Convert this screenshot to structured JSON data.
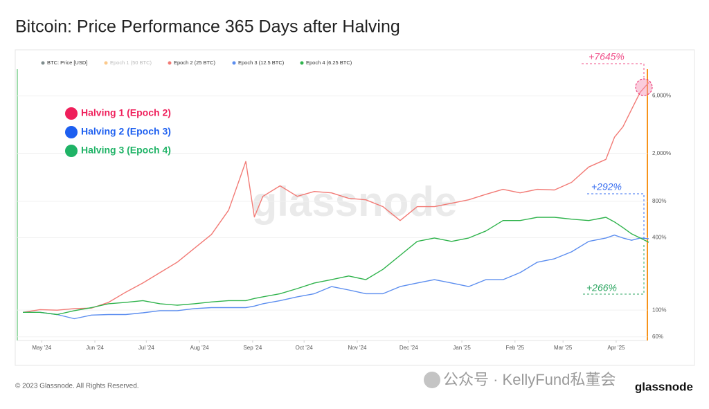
{
  "chart_data": {
    "type": "line",
    "title": "Bitcoin: Price Performance 365 Days after Halving",
    "log_scale": true,
    "y_axis_side": "right",
    "grid": true,
    "xlim": [
      0,
      365
    ],
    "xticks": [
      {
        "value": 11,
        "label": "May '24"
      },
      {
        "value": 42,
        "label": "Jun '24"
      },
      {
        "value": 72,
        "label": "Jul '24"
      },
      {
        "value": 103,
        "label": "Aug '24"
      },
      {
        "value": 134,
        "label": "Sep '24"
      },
      {
        "value": 164,
        "label": "Oct '24"
      },
      {
        "value": 195,
        "label": "Nov '24"
      },
      {
        "value": 225,
        "label": "Dec '24"
      },
      {
        "value": 256,
        "label": "Jan '25"
      },
      {
        "value": 287,
        "label": "Feb '25"
      },
      {
        "value": 315,
        "label": "Mar '25"
      },
      {
        "value": 346,
        "label": "Apr '25"
      }
    ],
    "ylim": [
      56,
      10000
    ],
    "yticks": [
      {
        "value": 60,
        "label": "60%"
      },
      {
        "value": 100,
        "label": "100%"
      },
      {
        "value": 400,
        "label": "400%"
      },
      {
        "value": 800,
        "label": "800%"
      },
      {
        "value": 2000,
        "label": "2,000%"
      },
      {
        "value": 6000,
        "label": "6,000%"
      }
    ],
    "x": [
      0,
      10,
      20,
      30,
      40,
      50,
      60,
      70,
      80,
      90,
      100,
      110,
      120,
      130,
      135,
      140,
      150,
      160,
      170,
      180,
      190,
      200,
      210,
      220,
      230,
      240,
      250,
      260,
      270,
      280,
      290,
      300,
      310,
      320,
      330,
      340,
      345,
      350,
      355,
      360,
      365
    ],
    "legend_extra": [
      {
        "name": "BTC: Price [USD]",
        "color": "#7f8c8d"
      },
      {
        "name": "Epoch 1 (50 BTC)",
        "color": "#f7931a",
        "hidden": true
      }
    ],
    "series": [
      {
        "name": "Epoch 2 (25 BTC)",
        "color": "#f27a75",
        "values": [
          96,
          101,
          100,
          103,
          104,
          116,
          141,
          168,
          205,
          250,
          326,
          425,
          676,
          1712,
          594,
          880,
          1076,
          880,
          966,
          941,
          847,
          824,
          723,
          554,
          723,
          723,
          771,
          824,
          915,
          1006,
          941,
          1006,
          994,
          1150,
          1542,
          1785,
          2730,
          3330,
          4640,
          6440,
          7745
        ]
      },
      {
        "name": "Epoch 3 (12.5 BTC)",
        "color": "#5b8def",
        "values": [
          96,
          96,
          92,
          85,
          91,
          92,
          92,
          95,
          99,
          99,
          103,
          105,
          105,
          105,
          108,
          113,
          120,
          129,
          137,
          157,
          147,
          137,
          137,
          157,
          168,
          179,
          168,
          157,
          179,
          179,
          205,
          250,
          267,
          305,
          372,
          397,
          420,
          397,
          380,
          397,
          392
        ]
      },
      {
        "name": "Epoch 4 (6.25 BTC)",
        "color": "#2fb34c",
        "values": [
          96,
          96,
          92,
          99,
          105,
          113,
          116,
          120,
          113,
          110,
          113,
          117,
          120,
          120,
          125,
          129,
          137,
          151,
          168,
          179,
          192,
          179,
          218,
          285,
          372,
          397,
          372,
          397,
          454,
          554,
          554,
          590,
          590,
          569,
          554,
          590,
          540,
          484,
          430,
          397,
          366
        ]
      }
    ],
    "halving_labels": [
      {
        "text": "Halving 1 (Epoch 2)",
        "color": "#ef1f5b"
      },
      {
        "text": "Halving 2 (Epoch 3)",
        "color": "#1d5ff0"
      },
      {
        "text": "Halving 3 (Epoch 4)",
        "color": "#1fb366"
      }
    ],
    "annotations": [
      {
        "text": "+7645%",
        "color": "#f0508a"
      },
      {
        "text": "+292%",
        "color": "#3a6ff0"
      },
      {
        "text": "+266%",
        "color": "#2ba560"
      }
    ],
    "watermark": "glassnode",
    "footer": "© 2023 Glassnode. All Rights Reserved.",
    "logo": "glassnode",
    "wechat_watermark": "公众号 · KellyFund私董会"
  }
}
